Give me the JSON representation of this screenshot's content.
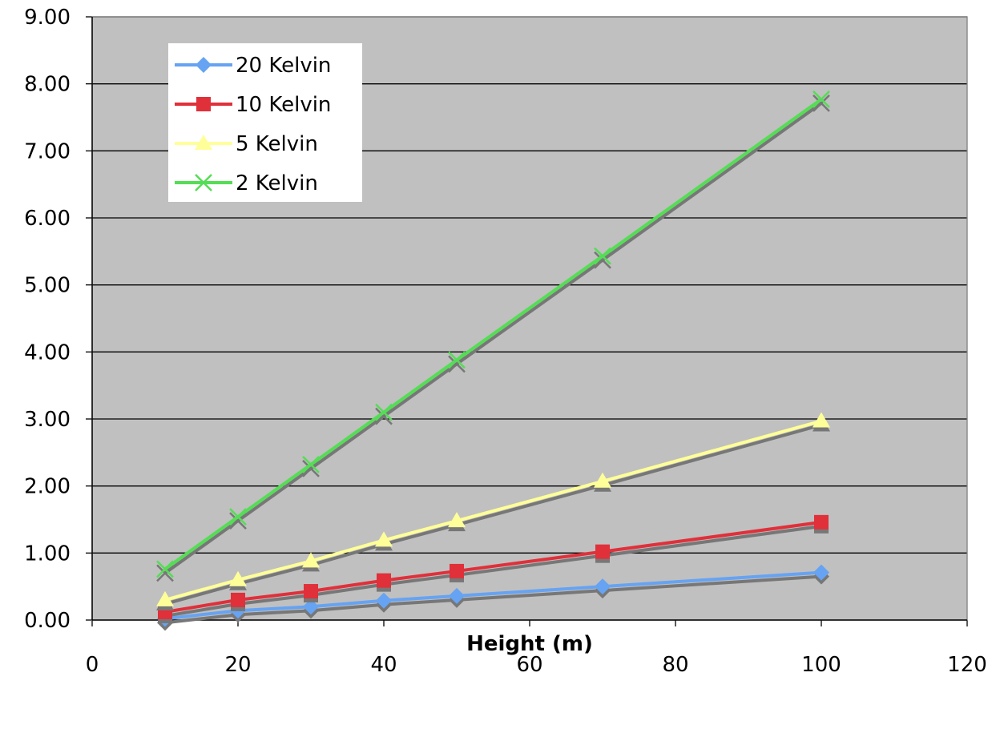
{
  "chart_data": {
    "type": "line",
    "title": "",
    "xlabel": "Height (m)",
    "ylabel": "",
    "xlim": [
      0,
      120
    ],
    "ylim": [
      0,
      9
    ],
    "x_ticks": [
      0,
      20,
      40,
      60,
      80,
      100,
      120
    ],
    "x_tick_labels": [
      "0",
      "20",
      "40",
      "60",
      "80",
      "100",
      "120"
    ],
    "y_ticks": [
      0,
      1,
      2,
      3,
      4,
      5,
      6,
      7,
      8,
      9
    ],
    "y_tick_labels": [
      "0.00",
      "1.00",
      "2.00",
      "3.00",
      "4.00",
      "5.00",
      "6.00",
      "7.00",
      "8.00",
      "9.00"
    ],
    "grid": "horizontal",
    "plot_background": "#c0c0c0",
    "legend_position": "top-left",
    "x": [
      10,
      20,
      30,
      40,
      50,
      70,
      100
    ],
    "series": [
      {
        "name": "20 Kelvin",
        "color": "#66a3f2",
        "marker": "diamond",
        "values": [
          0.02,
          0.14,
          0.2,
          0.29,
          0.36,
          0.5,
          0.71
        ]
      },
      {
        "name": "10 Kelvin",
        "color": "#e0303a",
        "marker": "square",
        "values": [
          0.12,
          0.3,
          0.43,
          0.59,
          0.73,
          1.02,
          1.46
        ]
      },
      {
        "name": "5 Kelvin",
        "color": "#ffff99",
        "marker": "triangle",
        "values": [
          0.3,
          0.6,
          0.88,
          1.19,
          1.48,
          2.07,
          2.97
        ]
      },
      {
        "name": "2 Kelvin",
        "color": "#55dd55",
        "marker": "x",
        "values": [
          0.76,
          1.54,
          2.32,
          3.1,
          3.88,
          5.43,
          7.77
        ]
      }
    ]
  }
}
